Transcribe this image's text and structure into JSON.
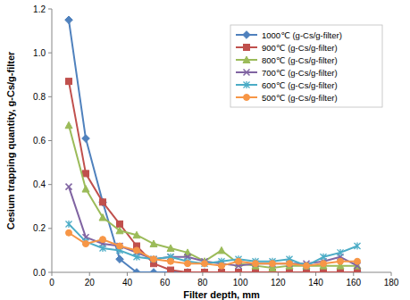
{
  "chart_data": {
    "type": "line",
    "x_label": "Filter depth, mm",
    "y_label": "Cesium trapping quantity, g-Cs/g-filter",
    "x": [
      9,
      18,
      27,
      36,
      45,
      54,
      63,
      72,
      81,
      90,
      99,
      108,
      117,
      126,
      135,
      144,
      153,
      162
    ],
    "xlim": [
      0,
      180
    ],
    "xticks": [
      0,
      20,
      40,
      60,
      80,
      100,
      120,
      140,
      160,
      180
    ],
    "ylim": [
      0,
      1.2
    ],
    "yticks": [
      {
        "value": 0,
        "label": "0.0"
      },
      0.2,
      0.4,
      0.6,
      0.8,
      {
        "value": 1,
        "label": "1.0"
      },
      1.2
    ],
    "grid": false,
    "legend": "top-right",
    "series": [
      {
        "name": "1000℃ (g-Cs/g-filter)",
        "color": "#4F81BD",
        "marker": "diamond",
        "values": [
          1.15,
          0.61,
          0.32,
          0.06,
          0.0,
          0.0,
          0.0,
          0.0,
          0.0,
          0.0,
          0.0,
          0.0,
          0.0,
          0.0,
          0.0,
          0.0,
          0.0,
          0.0
        ]
      },
      {
        "name": "900℃ (g-Cs/g-filter)",
        "color": "#C0504D",
        "marker": "square",
        "values": [
          0.87,
          0.45,
          0.32,
          0.22,
          0.12,
          0.04,
          0.01,
          0.0,
          0.0,
          0.0,
          0.0,
          0.0,
          0.0,
          0.0,
          0.0,
          0.0,
          0.0,
          0.0
        ]
      },
      {
        "name": "800℃ (g-Cs/g-filter)",
        "color": "#9BBB59",
        "marker": "triangle",
        "values": [
          0.67,
          0.38,
          0.25,
          0.19,
          0.17,
          0.13,
          0.11,
          0.09,
          0.05,
          0.1,
          0.04,
          0.03,
          0.02,
          0.03,
          0.03,
          0.03,
          0.03,
          0.03
        ]
      },
      {
        "name": "700℃ (g-Cs/g-filter)",
        "color": "#8064A2",
        "marker": "x",
        "values": [
          0.39,
          0.16,
          0.13,
          0.12,
          0.09,
          0.06,
          0.07,
          0.07,
          0.05,
          0.04,
          0.03,
          0.04,
          0.04,
          0.04,
          0.04,
          0.05,
          0.07,
          0.03
        ]
      },
      {
        "name": "600℃ (g-Cs/g-filter)",
        "color": "#4BACC6",
        "marker": "asterisk",
        "values": [
          0.22,
          0.14,
          0.11,
          0.1,
          0.07,
          0.06,
          0.07,
          0.05,
          0.04,
          0.05,
          0.06,
          0.05,
          0.05,
          0.06,
          0.03,
          0.07,
          0.09,
          0.12
        ]
      },
      {
        "name": "500℃ (g-Cs/g-filter)",
        "color": "#F79646",
        "marker": "circle",
        "values": [
          0.18,
          0.13,
          0.15,
          0.12,
          0.1,
          0.06,
          0.05,
          0.04,
          0.04,
          0.03,
          0.05,
          0.04,
          0.04,
          0.04,
          0.03,
          0.04,
          0.05,
          0.05
        ]
      }
    ]
  }
}
